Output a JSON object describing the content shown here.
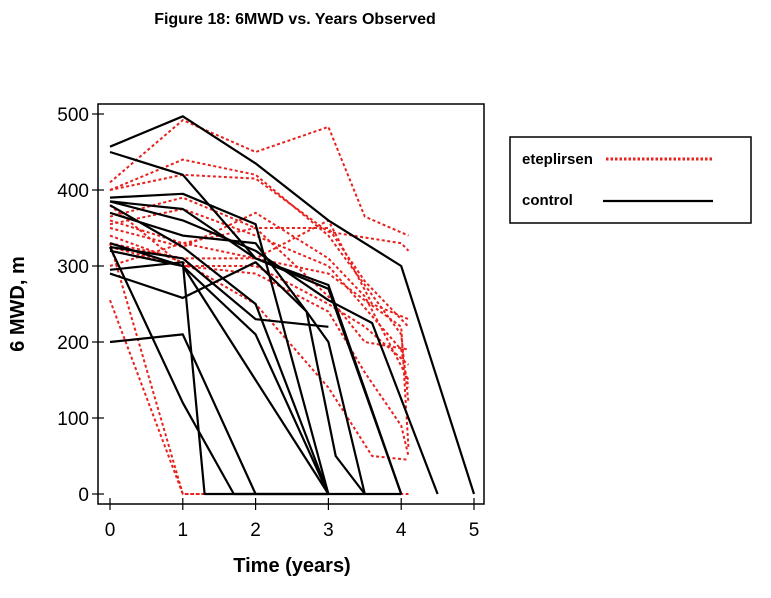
{
  "chart_data": {
    "type": "line",
    "title": "Figure 18: 6MWD vs. Years Observed",
    "xlabel": "Time (years)",
    "ylabel": "6 MWD, m",
    "xlim": [
      0,
      5
    ],
    "ylim": [
      0,
      500
    ],
    "xticks": [
      "0",
      "1",
      "2",
      "3",
      "4",
      "5"
    ],
    "yticks": [
      "0",
      "100",
      "200",
      "300",
      "400",
      "500"
    ],
    "legend_position": "top-right",
    "groups": [
      {
        "name": "eteplirsen",
        "color": "#e8211d",
        "style": "dotted"
      },
      {
        "name": "control",
        "color": "#000000",
        "style": "solid"
      }
    ],
    "series": [
      {
        "group": "eteplirsen",
        "points": [
          [
            0,
            400
          ],
          [
            1,
            440
          ],
          [
            2,
            420
          ],
          [
            3,
            340
          ],
          [
            4,
            210
          ],
          [
            4.1,
            120
          ]
        ]
      },
      {
        "group": "eteplirsen",
        "points": [
          [
            0,
            410
          ],
          [
            1,
            492
          ],
          [
            2,
            450
          ],
          [
            3,
            483
          ],
          [
            3.5,
            365
          ],
          [
            4.1,
            340
          ]
        ]
      },
      {
        "group": "eteplirsen",
        "points": [
          [
            0,
            400
          ],
          [
            1,
            420
          ],
          [
            2,
            415
          ],
          [
            3,
            345
          ],
          [
            4,
            330
          ],
          [
            4.1,
            320
          ]
        ]
      },
      {
        "group": "eteplirsen",
        "points": [
          [
            0,
            360
          ],
          [
            1,
            330
          ],
          [
            2,
            350
          ],
          [
            3,
            350
          ],
          [
            3.5,
            280
          ],
          [
            4,
            230
          ],
          [
            4.1,
            220
          ]
        ]
      },
      {
        "group": "eteplirsen",
        "points": [
          [
            0,
            350
          ],
          [
            1,
            325
          ],
          [
            2,
            370
          ],
          [
            3,
            310
          ],
          [
            3.5,
            260
          ],
          [
            4.1,
            150
          ]
        ]
      },
      {
        "group": "eteplirsen",
        "points": [
          [
            0,
            330
          ],
          [
            1,
            310
          ],
          [
            2,
            310
          ],
          [
            3,
            290
          ],
          [
            4,
            220
          ],
          [
            4.1,
            60
          ]
        ]
      },
      {
        "group": "eteplirsen",
        "points": [
          [
            0,
            325
          ],
          [
            1,
            300
          ],
          [
            2,
            300
          ],
          [
            3,
            250
          ],
          [
            3.5,
            220
          ],
          [
            4.1,
            170
          ]
        ]
      },
      {
        "group": "eteplirsen",
        "points": [
          [
            0,
            355
          ],
          [
            1,
            375
          ],
          [
            2,
            340
          ],
          [
            3,
            300
          ],
          [
            4,
            190
          ],
          [
            4.1,
            140
          ]
        ]
      },
      {
        "group": "eteplirsen",
        "points": [
          [
            0,
            365
          ],
          [
            1,
            390
          ],
          [
            2,
            350
          ],
          [
            3,
            260
          ],
          [
            3.5,
            200
          ],
          [
            4.1,
            190
          ]
        ]
      },
      {
        "group": "eteplirsen",
        "points": [
          [
            0,
            380
          ],
          [
            1,
            300
          ],
          [
            2,
            290
          ],
          [
            3,
            240
          ],
          [
            3.5,
            160
          ],
          [
            4,
            90
          ],
          [
            4.1,
            50
          ]
        ]
      },
      {
        "group": "eteplirsen",
        "points": [
          [
            0,
            340
          ],
          [
            1,
            305
          ],
          [
            2,
            250
          ],
          [
            3,
            140
          ],
          [
            3.6,
            50
          ],
          [
            4.1,
            45
          ]
        ]
      },
      {
        "group": "eteplirsen",
        "points": [
          [
            0,
            300
          ],
          [
            1,
            330
          ],
          [
            2,
            310
          ],
          [
            3,
            360
          ],
          [
            3.6,
            250
          ],
          [
            4.1,
            230
          ]
        ]
      },
      {
        "group": "eteplirsen",
        "points": [
          [
            0,
            255
          ],
          [
            1,
            0
          ],
          [
            2,
            0
          ]
        ]
      },
      {
        "group": "eteplirsen",
        "points": [
          [
            0,
            330
          ],
          [
            1,
            0
          ],
          [
            4.1,
            0
          ]
        ]
      },
      {
        "group": "control",
        "points": [
          [
            0,
            457
          ],
          [
            1,
            497
          ],
          [
            2,
            435
          ],
          [
            3,
            360
          ],
          [
            4,
            300
          ],
          [
            5,
            0
          ]
        ]
      },
      {
        "group": "control",
        "points": [
          [
            0,
            450
          ],
          [
            1,
            420
          ],
          [
            2,
            310
          ],
          [
            3,
            270
          ],
          [
            4,
            0
          ]
        ]
      },
      {
        "group": "control",
        "points": [
          [
            0,
            390
          ],
          [
            1,
            395
          ],
          [
            2,
            355
          ],
          [
            3,
            0
          ]
        ]
      },
      {
        "group": "control",
        "points": [
          [
            0,
            385
          ],
          [
            1,
            375
          ],
          [
            2,
            310
          ],
          [
            3,
            275
          ],
          [
            4,
            0
          ]
        ]
      },
      {
        "group": "control",
        "points": [
          [
            0,
            385
          ],
          [
            1,
            360
          ],
          [
            2,
            320
          ],
          [
            3,
            255
          ],
          [
            3.6,
            225
          ],
          [
            4.5,
            0
          ]
        ]
      },
      {
        "group": "control",
        "points": [
          [
            0,
            380
          ],
          [
            1,
            325
          ],
          [
            2,
            250
          ],
          [
            3,
            0
          ]
        ]
      },
      {
        "group": "control",
        "points": [
          [
            0,
            370
          ],
          [
            1,
            340
          ],
          [
            2,
            330
          ],
          [
            2.7,
            240
          ],
          [
            3,
            200
          ],
          [
            3.5,
            0
          ]
        ]
      },
      {
        "group": "control",
        "points": [
          [
            0,
            330
          ],
          [
            1,
            300
          ],
          [
            2,
            210
          ],
          [
            3,
            0
          ]
        ]
      },
      {
        "group": "control",
        "points": [
          [
            0,
            325
          ],
          [
            1,
            310
          ],
          [
            2,
            230
          ],
          [
            3,
            220
          ]
        ]
      },
      {
        "group": "control",
        "points": [
          [
            0,
            320
          ],
          [
            1,
            300
          ],
          [
            2,
            150
          ],
          [
            3,
            0
          ]
        ]
      },
      {
        "group": "control",
        "points": [
          [
            0,
            325
          ],
          [
            1,
            120
          ],
          [
            1.7,
            0
          ],
          [
            4,
            0
          ]
        ]
      },
      {
        "group": "control",
        "points": [
          [
            0,
            295
          ],
          [
            1,
            305
          ],
          [
            1.3,
            0
          ],
          [
            3,
            0
          ]
        ]
      },
      {
        "group": "control",
        "points": [
          [
            0,
            200
          ],
          [
            1,
            210
          ],
          [
            2,
            0
          ]
        ]
      },
      {
        "group": "control",
        "points": [
          [
            0,
            290
          ],
          [
            1,
            258
          ],
          [
            2,
            305
          ],
          [
            2.7,
            240
          ],
          [
            3.1,
            50
          ],
          [
            3.5,
            0
          ]
        ]
      }
    ]
  }
}
